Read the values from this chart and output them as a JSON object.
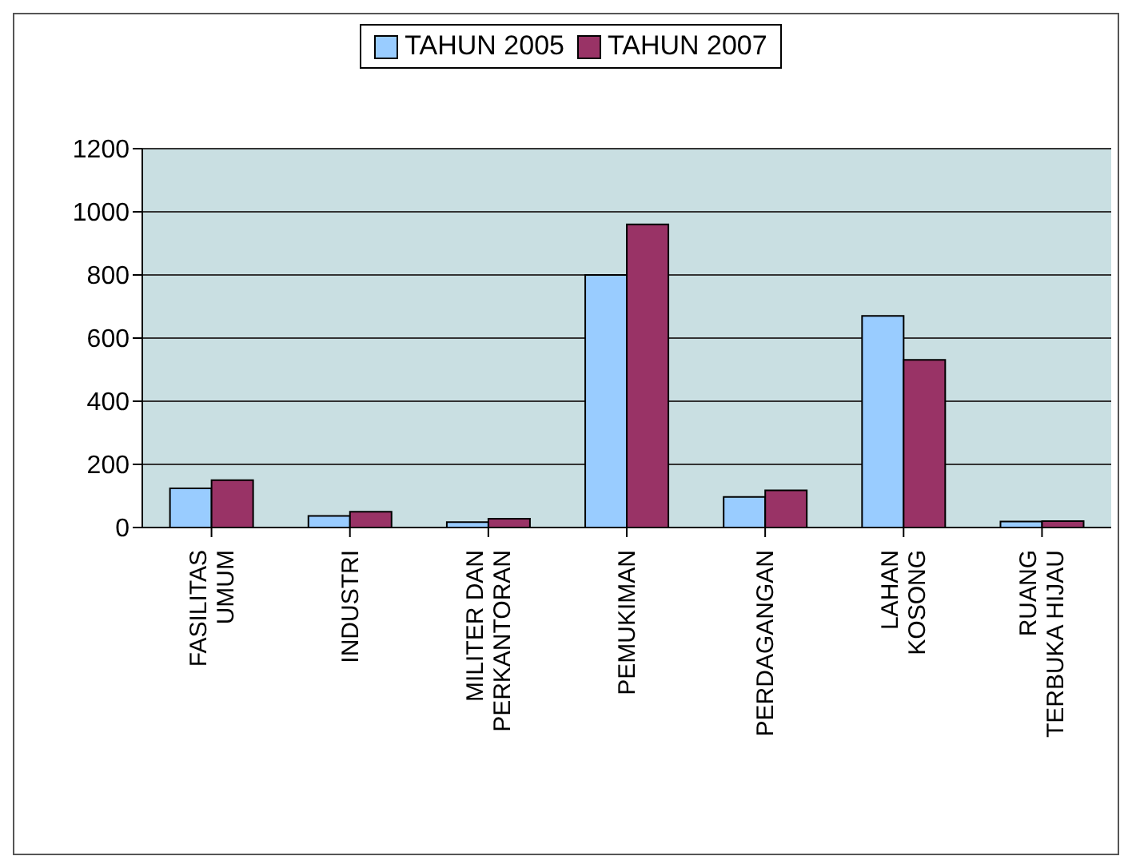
{
  "chart_data": {
    "type": "bar",
    "categories": [
      "FASILITAS UMUM",
      "INDUSTRI",
      "MILITER DAN PERKANTORAN",
      "PEMUKIMAN",
      "PERDAGANGAN",
      "LAHAN KOSONG",
      "RUANG TERBUKA HIJAU"
    ],
    "series": [
      {
        "name": "TAHUN 2005",
        "color": "#99ccff",
        "values": [
          124,
          37,
          17,
          800,
          97,
          670,
          19
        ]
      },
      {
        "name": "TAHUN 2007",
        "color": "#993366",
        "values": [
          150,
          50,
          28,
          960,
          118,
          531,
          20
        ]
      }
    ],
    "ylim": [
      0,
      1200
    ],
    "yticks": [
      0,
      200,
      400,
      600,
      800,
      1000,
      1200
    ],
    "grid": "y",
    "legend": "top"
  }
}
